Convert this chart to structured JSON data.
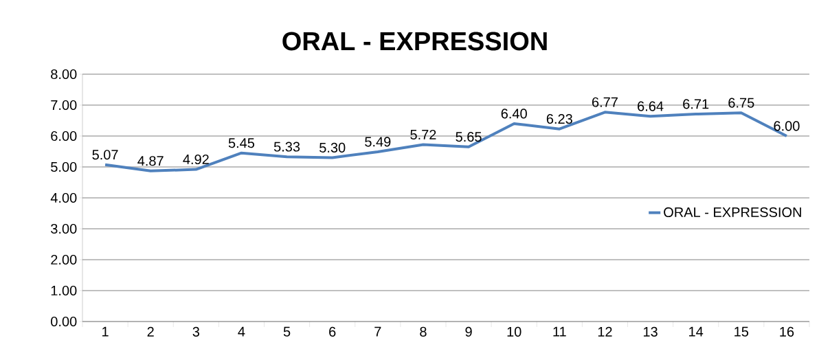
{
  "chart_data": {
    "type": "line",
    "title": "ORAL - EXPRESSION",
    "categories": [
      "1",
      "2",
      "3",
      "4",
      "5",
      "6",
      "7",
      "8",
      "9",
      "10",
      "11",
      "12",
      "13",
      "14",
      "15",
      "16"
    ],
    "series": [
      {
        "name": "ORAL - EXPRESSION",
        "color": "#4f81bd",
        "values": [
          5.07,
          4.87,
          4.92,
          5.45,
          5.33,
          5.3,
          5.49,
          5.72,
          5.65,
          6.4,
          6.23,
          6.77,
          6.64,
          6.71,
          6.75,
          6.0
        ],
        "value_labels": [
          "5.07",
          "4.87",
          "4.92",
          "5.45",
          "5.33",
          "5.30",
          "5.49",
          "5.72",
          "5.65",
          "6.40",
          "6.23",
          "6.77",
          "6.64",
          "6.71",
          "6.75",
          "6.00"
        ]
      }
    ],
    "ylim": [
      0,
      8
    ],
    "yticks": [
      {
        "value": 0,
        "label": "0.00"
      },
      {
        "value": 1,
        "label": "1.00"
      },
      {
        "value": 2,
        "label": "2.00"
      },
      {
        "value": 3,
        "label": "3.00"
      },
      {
        "value": 4,
        "label": "4.00"
      },
      {
        "value": 5,
        "label": "5.00"
      },
      {
        "value": 6,
        "label": "6.00"
      },
      {
        "value": 7,
        "label": "7.00"
      },
      {
        "value": 8,
        "label": "8.00"
      }
    ],
    "grid": "y",
    "legend": "right",
    "marker": "none",
    "line_style": "solid"
  }
}
